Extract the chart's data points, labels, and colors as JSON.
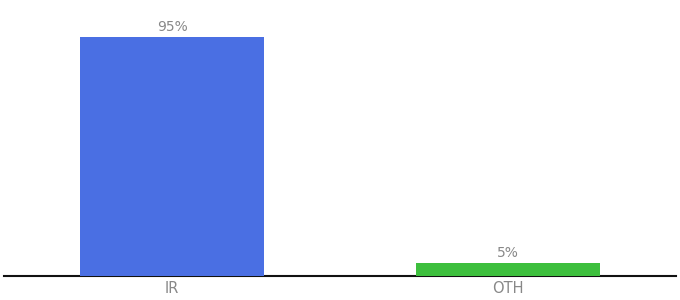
{
  "categories": [
    "IR",
    "OTH"
  ],
  "values": [
    95,
    5
  ],
  "bar_colors": [
    "#4a6fe3",
    "#3dbf3d"
  ],
  "labels": [
    "95%",
    "5%"
  ],
  "background_color": "#ffffff",
  "bar_width": 0.55,
  "ylim": [
    0,
    108
  ],
  "xlim": [
    -0.5,
    1.5
  ],
  "label_fontsize": 10,
  "tick_fontsize": 10.5,
  "tick_color": "#888888",
  "label_color": "#888888",
  "axis_line_color": "#111111"
}
